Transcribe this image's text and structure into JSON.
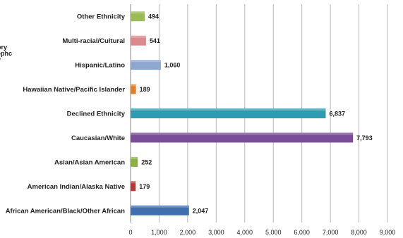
{
  "clipped_left_label": [
    "ory",
    "ephc",
    "y"
  ],
  "chart_data": {
    "type": "bar",
    "orientation": "horizontal",
    "title": "",
    "xlabel": "",
    "ylabel": "",
    "xlim": [
      0,
      9000
    ],
    "x_ticks": [
      0,
      1000,
      2000,
      3000,
      4000,
      5000,
      6000,
      7000,
      8000,
      9000
    ],
    "x_tick_labels": [
      "0",
      "1,000",
      "2,000",
      "3,000",
      "4,000",
      "5,000",
      "6,000",
      "7,000",
      "8,000",
      "9,000"
    ],
    "grid": "vertical",
    "legend": "none",
    "categories": [
      "Other Ethnicity",
      "Multi-racial/Cultural",
      "Hispanic/Latino",
      "Hawaiian Native/Pacific Islander",
      "Declined Ethnicity",
      "Caucasian/White",
      "Asian/Asian American",
      "American Indian/Alaska Native",
      "African American/Black/Other African"
    ],
    "values": [
      494,
      541,
      1060,
      189,
      6837,
      7793,
      252,
      179,
      2047
    ],
    "value_labels": [
      "494",
      "541",
      "1,060",
      "189",
      "6,837",
      "7,793",
      "252",
      "179",
      "2,047"
    ],
    "colors": [
      "#9BBB59",
      "#D98B8E",
      "#8EA7D1",
      "#E07F2A",
      "#2E9BB0",
      "#7A4E96",
      "#8DB045",
      "#B23A36",
      "#3F6FAE"
    ]
  }
}
